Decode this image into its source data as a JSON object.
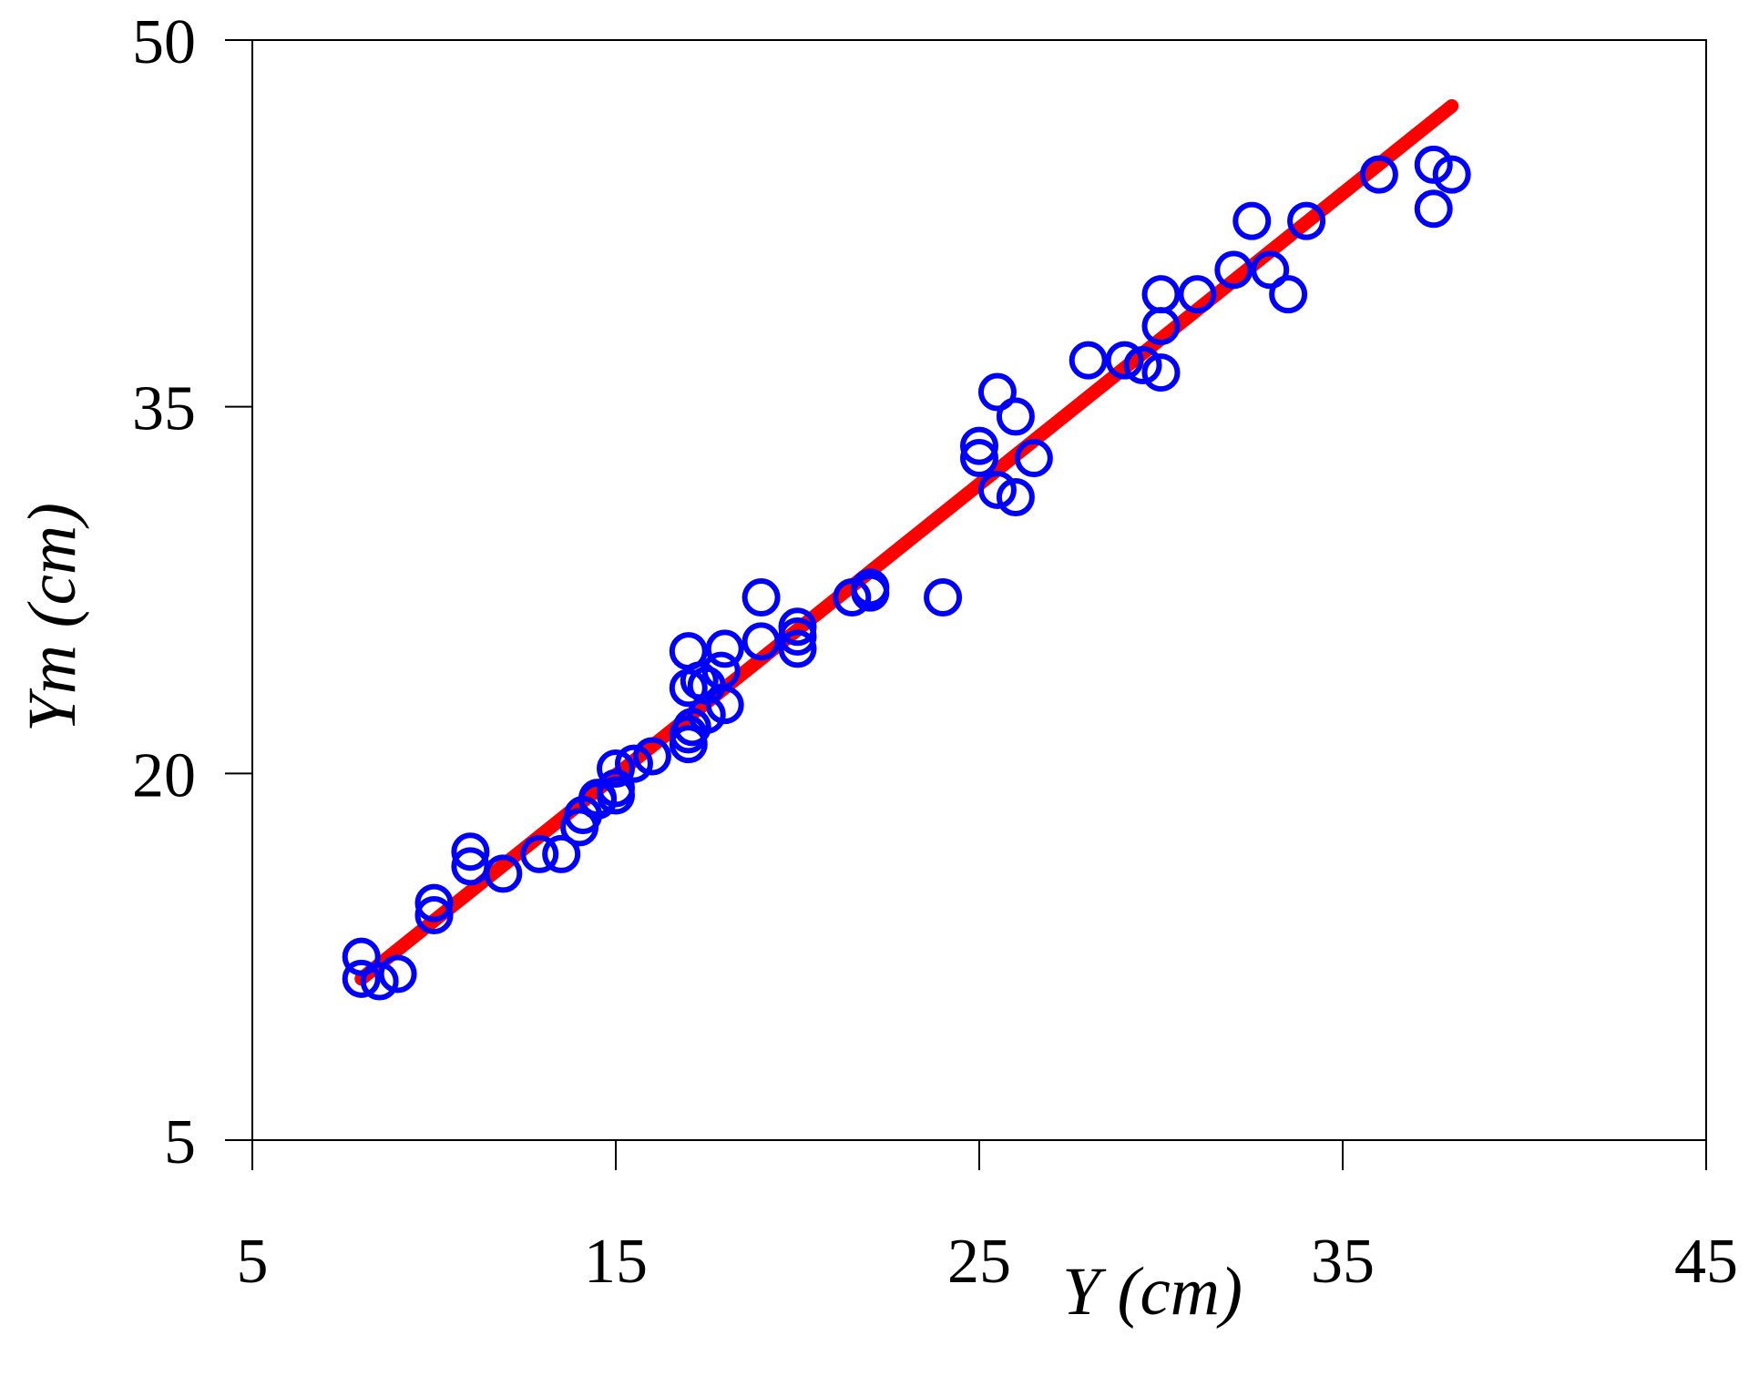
{
  "chart_data": {
    "type": "scatter",
    "title": "",
    "xlabel": "Y (cm)",
    "ylabel": "Ym (cm)",
    "xlim": [
      5,
      45
    ],
    "ylim": [
      5,
      50
    ],
    "x_ticks": [
      5,
      15,
      25,
      35,
      45
    ],
    "y_ticks": [
      5,
      20,
      35,
      50
    ],
    "x_tick_labels": [
      "5",
      "15",
      "25",
      "35",
      "45"
    ],
    "y_tick_labels": [
      "5",
      "20",
      "35",
      "50"
    ],
    "grid": false,
    "legend": "none",
    "series": [
      {
        "kind": "scatter",
        "marker": "open-circle",
        "color": "#0000ff",
        "points": [
          [
            8,
            12.5
          ],
          [
            8,
            11.6
          ],
          [
            8.5,
            11.5
          ],
          [
            9,
            11.8
          ],
          [
            10,
            14.7
          ],
          [
            10,
            14.2
          ],
          [
            11,
            16.8
          ],
          [
            11,
            16.2
          ],
          [
            11.9,
            15.9
          ],
          [
            12.9,
            16.7
          ],
          [
            13.5,
            16.7
          ],
          [
            14,
            17.8
          ],
          [
            14.1,
            18.3
          ],
          [
            14.5,
            18.9
          ],
          [
            14.5,
            19
          ],
          [
            15,
            19.1
          ],
          [
            15,
            19.4
          ],
          [
            15,
            20.2
          ],
          [
            15.5,
            20.4
          ],
          [
            16,
            20.7
          ],
          [
            17,
            21.2
          ],
          [
            17,
            21.6
          ],
          [
            17.1,
            21.9
          ],
          [
            17.5,
            22.4
          ],
          [
            17,
            23.5
          ],
          [
            17.5,
            23.6
          ],
          [
            17.3,
            23.8
          ],
          [
            18,
            22.8
          ],
          [
            17.9,
            24.2
          ],
          [
            17,
            25
          ],
          [
            18,
            25.1
          ],
          [
            19,
            25.4
          ],
          [
            19,
            27.2
          ],
          [
            20,
            25.1
          ],
          [
            20,
            25.6
          ],
          [
            20,
            26
          ],
          [
            21.5,
            27.2
          ],
          [
            22,
            27.4
          ],
          [
            22,
            27.6
          ],
          [
            24,
            27.2
          ],
          [
            25,
            32.9
          ],
          [
            25,
            33.4
          ],
          [
            25.5,
            31.6
          ],
          [
            26,
            31.3
          ],
          [
            25.5,
            35.6
          ],
          [
            26,
            34.6
          ],
          [
            26.5,
            32.9
          ],
          [
            28,
            36.9
          ],
          [
            29,
            36.9
          ],
          [
            29.5,
            36.7
          ],
          [
            30,
            36.4
          ],
          [
            30,
            38.3
          ],
          [
            30,
            39.6
          ],
          [
            31,
            39.6
          ],
          [
            32,
            40.6
          ],
          [
            33,
            40.6
          ],
          [
            33.5,
            39.6
          ],
          [
            32.5,
            42.6
          ],
          [
            34,
            42.6
          ],
          [
            36,
            44.5
          ],
          [
            37.5,
            44.9
          ],
          [
            37.5,
            43.1
          ],
          [
            38,
            44.5
          ]
        ]
      },
      {
        "kind": "line",
        "color": "#ff0000",
        "points": [
          [
            8,
            11.6
          ],
          [
            38,
            47.3
          ]
        ]
      }
    ]
  }
}
